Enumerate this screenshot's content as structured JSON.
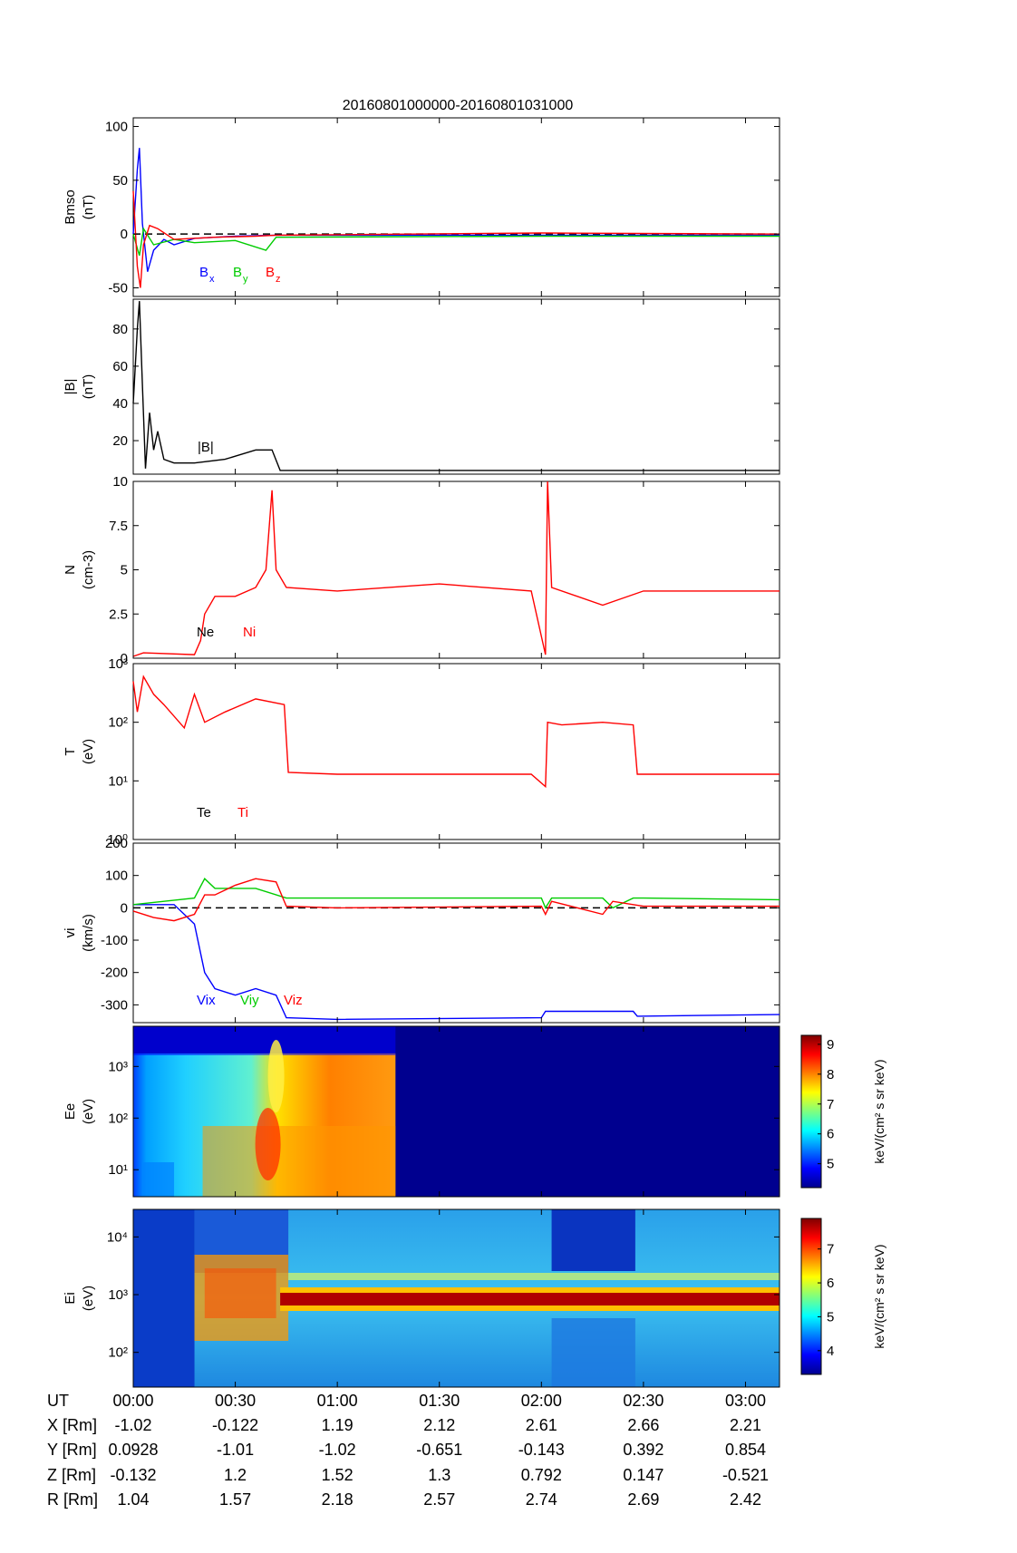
{
  "chart_data": {
    "title": "20160801000000-20160801031000",
    "time_axis": {
      "range_hours": [
        0,
        3.1667
      ],
      "ticks": [
        {
          "t": 0,
          "label": "00:00"
        },
        {
          "t": 0.5,
          "label": "00:30"
        },
        {
          "t": 1,
          "label": "01:00"
        },
        {
          "t": 1.5,
          "label": "01:30"
        },
        {
          "t": 2,
          "label": "02:00"
        },
        {
          "t": 2.5,
          "label": "02:30"
        },
        {
          "t": 3,
          "label": "03:00"
        }
      ]
    },
    "ephemeris": {
      "rows": [
        {
          "label": "UT",
          "values": []
        },
        {
          "label": "X [Rm]",
          "values": [
            "-1.02",
            "-0.122",
            "1.19",
            "2.12",
            "2.61",
            "2.66",
            "2.21"
          ]
        },
        {
          "label": "Y [Rm]",
          "values": [
            "0.0928",
            "-1.01",
            "-1.02",
            "-0.651",
            "-0.143",
            "0.392",
            "0.854"
          ]
        },
        {
          "label": "Z [Rm]",
          "values": [
            "-0.132",
            "1.2",
            "1.52",
            "1.3",
            "0.792",
            "0.147",
            "-0.521"
          ]
        },
        {
          "label": "R [Rm]",
          "values": [
            "1.04",
            "1.57",
            "2.18",
            "2.57",
            "2.74",
            "2.69",
            "2.42"
          ]
        }
      ]
    },
    "panels": [
      {
        "id": "bmso",
        "type": "line",
        "ylabel": "Bmso",
        "yunit": "(nT)",
        "ylim": [
          -58,
          108
        ],
        "yticks": [
          {
            "v": 100,
            "label": "100"
          },
          {
            "v": 50,
            "label": "50"
          },
          {
            "v": 0,
            "label": "0"
          },
          {
            "v": -50,
            "label": "-50"
          }
        ],
        "zero_line": true,
        "legend": [
          {
            "main": "B",
            "sub": "x",
            "color": "#0000ff"
          },
          {
            "main": "B",
            "sub": "y",
            "color": "#00cc00"
          },
          {
            "main": "B",
            "sub": "z",
            "color": "#ff0000"
          }
        ],
        "series": [
          {
            "color": "#0000ff",
            "points": [
              [
                0,
                0
              ],
              [
                0.02,
                60
              ],
              [
                0.03,
                80
              ],
              [
                0.045,
                10
              ],
              [
                0.07,
                -35
              ],
              [
                0.1,
                -15
              ],
              [
                0.15,
                -5
              ],
              [
                0.2,
                -10
              ],
              [
                0.3,
                -4
              ],
              [
                0.5,
                -2
              ],
              [
                0.7,
                -1
              ],
              [
                2,
                -1
              ],
              [
                3.1667,
                -1
              ]
            ]
          },
          {
            "color": "#00cc00",
            "points": [
              [
                0,
                0
              ],
              [
                0.03,
                -20
              ],
              [
                0.05,
                5
              ],
              [
                0.1,
                -10
              ],
              [
                0.2,
                -5
              ],
              [
                0.3,
                -8
              ],
              [
                0.5,
                -6
              ],
              [
                0.65,
                -15
              ],
              [
                0.7,
                -3
              ],
              [
                2,
                -2
              ],
              [
                3.1667,
                -2
              ]
            ]
          },
          {
            "color": "#ff0000",
            "points": [
              [
                0,
                40
              ],
              [
                0.02,
                -30
              ],
              [
                0.035,
                -50
              ],
              [
                0.05,
                -10
              ],
              [
                0.08,
                8
              ],
              [
                0.12,
                5
              ],
              [
                0.2,
                -5
              ],
              [
                0.4,
                -3
              ],
              [
                0.6,
                -2
              ],
              [
                0.7,
                -1
              ],
              [
                2,
                1
              ],
              [
                3.1667,
                0
              ]
            ]
          }
        ]
      },
      {
        "id": "btot",
        "type": "line",
        "ylabel": "|B|",
        "yunit": "(nT)",
        "ylim": [
          2,
          96
        ],
        "yticks": [
          {
            "v": 80,
            "label": "80"
          },
          {
            "v": 60,
            "label": "60"
          },
          {
            "v": 40,
            "label": "40"
          },
          {
            "v": 20,
            "label": "20"
          }
        ],
        "legend": [
          {
            "main": "|B|",
            "sub": "",
            "color": "#000000"
          }
        ],
        "series": [
          {
            "color": "#000000",
            "points": [
              [
                0,
                40
              ],
              [
                0.02,
                80
              ],
              [
                0.03,
                95
              ],
              [
                0.045,
                50
              ],
              [
                0.06,
                5
              ],
              [
                0.08,
                35
              ],
              [
                0.1,
                15
              ],
              [
                0.12,
                25
              ],
              [
                0.15,
                10
              ],
              [
                0.2,
                8
              ],
              [
                0.3,
                8
              ],
              [
                0.45,
                10
              ],
              [
                0.6,
                15
              ],
              [
                0.68,
                15
              ],
              [
                0.72,
                4
              ],
              [
                1,
                4
              ],
              [
                2,
                4
              ],
              [
                3.1667,
                4
              ]
            ]
          }
        ]
      },
      {
        "id": "dens",
        "type": "line",
        "ylabel": "N",
        "yunit": "(cm-3)",
        "ylim": [
          0,
          10
        ],
        "yticks": [
          {
            "v": 10,
            "label": "10"
          },
          {
            "v": 7.5,
            "label": "7.5"
          },
          {
            "v": 5,
            "label": "5"
          },
          {
            "v": 2.5,
            "label": "2.5"
          },
          {
            "v": 0,
            "label": "0"
          }
        ],
        "legend": [
          {
            "main": "Ne",
            "sub": "",
            "color": "#000000"
          },
          {
            "main": "Ni",
            "sub": "",
            "color": "#ff0000"
          }
        ],
        "series": [
          {
            "color": "#ff0000",
            "points": [
              [
                0,
                0.1
              ],
              [
                0.05,
                0.3
              ],
              [
                0.3,
                0.2
              ],
              [
                0.33,
                1
              ],
              [
                0.35,
                2.5
              ],
              [
                0.4,
                3.5
              ],
              [
                0.5,
                3.5
              ],
              [
                0.6,
                4
              ],
              [
                0.65,
                5
              ],
              [
                0.68,
                9.5
              ],
              [
                0.7,
                5
              ],
              [
                0.75,
                4
              ],
              [
                1,
                3.8
              ],
              [
                1.5,
                4.2
              ],
              [
                1.95,
                3.8
              ],
              [
                2.02,
                0.2
              ],
              [
                2.03,
                10
              ],
              [
                2.05,
                4
              ],
              [
                2.3,
                3
              ],
              [
                2.5,
                3.8
              ],
              [
                3.1667,
                3.8
              ]
            ]
          }
        ]
      },
      {
        "id": "temp",
        "type": "line",
        "ylabel": "T",
        "yunit": "(eV)",
        "log": true,
        "ylim": [
          1,
          1000
        ],
        "yticks": [
          {
            "v": 1000,
            "label": "10³"
          },
          {
            "v": 100,
            "label": "10²"
          },
          {
            "v": 10,
            "label": "10¹"
          },
          {
            "v": 1,
            "label": "10⁰"
          }
        ],
        "legend": [
          {
            "main": "Te",
            "sub": "",
            "color": "#000000"
          },
          {
            "main": "Ti",
            "sub": "",
            "color": "#ff0000"
          }
        ],
        "series": [
          {
            "color": "#ff0000",
            "points": [
              [
                0,
                500
              ],
              [
                0.02,
                150
              ],
              [
                0.05,
                600
              ],
              [
                0.1,
                300
              ],
              [
                0.15,
                200
              ],
              [
                0.25,
                80
              ],
              [
                0.3,
                300
              ],
              [
                0.35,
                100
              ],
              [
                0.45,
                150
              ],
              [
                0.6,
                250
              ],
              [
                0.74,
                200
              ],
              [
                0.76,
                14
              ],
              [
                1,
                13
              ],
              [
                1.5,
                13
              ],
              [
                1.95,
                13
              ],
              [
                2.02,
                8
              ],
              [
                2.03,
                100
              ],
              [
                2.1,
                90
              ],
              [
                2.3,
                100
              ],
              [
                2.45,
                90
              ],
              [
                2.47,
                13
              ],
              [
                3.1667,
                13
              ]
            ]
          }
        ]
      },
      {
        "id": "vel",
        "type": "line",
        "ylabel": "vi",
        "yunit": "(km/s)",
        "ylim": [
          -355,
          200
        ],
        "yticks": [
          {
            "v": 200,
            "label": "200"
          },
          {
            "v": 100,
            "label": "100"
          },
          {
            "v": 0,
            "label": "0"
          },
          {
            "v": -100,
            "label": "-100"
          },
          {
            "v": -200,
            "label": "-200"
          },
          {
            "v": -300,
            "label": "-300"
          }
        ],
        "zero_line": true,
        "legend": [
          {
            "main": "Vix",
            "sub": "",
            "color": "#0000ff"
          },
          {
            "main": "Viy",
            "sub": "",
            "color": "#00cc00"
          },
          {
            "main": "Viz",
            "sub": "",
            "color": "#ff0000"
          }
        ],
        "series": [
          {
            "color": "#0000ff",
            "points": [
              [
                0,
                10
              ],
              [
                0.2,
                10
              ],
              [
                0.3,
                -50
              ],
              [
                0.35,
                -200
              ],
              [
                0.4,
                -250
              ],
              [
                0.5,
                -270
              ],
              [
                0.6,
                -250
              ],
              [
                0.7,
                -270
              ],
              [
                0.75,
                -340
              ],
              [
                1,
                -345
              ],
              [
                2,
                -340
              ],
              [
                2.02,
                -320
              ],
              [
                2.1,
                -320
              ],
              [
                2.45,
                -320
              ],
              [
                2.47,
                -335
              ],
              [
                3.1667,
                -330
              ]
            ]
          },
          {
            "color": "#00cc00",
            "points": [
              [
                0,
                10
              ],
              [
                0.15,
                20
              ],
              [
                0.3,
                30
              ],
              [
                0.35,
                90
              ],
              [
                0.4,
                60
              ],
              [
                0.6,
                60
              ],
              [
                0.75,
                30
              ],
              [
                1,
                30
              ],
              [
                2,
                30
              ],
              [
                2.02,
                0
              ],
              [
                2.05,
                30
              ],
              [
                2.3,
                30
              ],
              [
                2.35,
                0
              ],
              [
                2.45,
                30
              ],
              [
                2.5,
                30
              ],
              [
                3.1667,
                25
              ]
            ]
          },
          {
            "color": "#ff0000",
            "points": [
              [
                0,
                -10
              ],
              [
                0.1,
                -30
              ],
              [
                0.2,
                -40
              ],
              [
                0.3,
                -20
              ],
              [
                0.35,
                40
              ],
              [
                0.4,
                40
              ],
              [
                0.5,
                70
              ],
              [
                0.6,
                90
              ],
              [
                0.7,
                80
              ],
              [
                0.75,
                5
              ],
              [
                1,
                0
              ],
              [
                2,
                5
              ],
              [
                2.02,
                -20
              ],
              [
                2.05,
                20
              ],
              [
                2.3,
                -20
              ],
              [
                2.35,
                20
              ],
              [
                2.45,
                10
              ],
              [
                2.5,
                5
              ],
              [
                3.1667,
                5
              ]
            ]
          }
        ]
      },
      {
        "id": "ee",
        "type": "heatmap",
        "ylabel": "Ee",
        "yunit": "(eV)",
        "log": true,
        "ylim": [
          3,
          6000
        ],
        "yticks": [
          {
            "v": 1000,
            "label": "10³"
          },
          {
            "v": 100,
            "label": "10²"
          },
          {
            "v": 10,
            "label": "10¹"
          }
        ],
        "colorbar": {
          "label": "keV/(cm² s sr keV)",
          "range": [
            4.2,
            9.3
          ],
          "ticks": [
            {
              "v": 9,
              "label": "9"
            },
            {
              "v": 8,
              "label": "8"
            },
            {
              "v": 7,
              "label": "7"
            },
            {
              "v": 6,
              "label": "6"
            },
            {
              "v": 5,
              "label": "5"
            }
          ]
        }
      },
      {
        "id": "ei",
        "type": "heatmap",
        "ylabel": "Ei",
        "yunit": "(eV)",
        "log": true,
        "ylim": [
          25,
          30000
        ],
        "yticks": [
          {
            "v": 10000,
            "label": "10⁴"
          },
          {
            "v": 1000,
            "label": "10³"
          },
          {
            "v": 100,
            "label": "10²"
          }
        ],
        "colorbar": {
          "label": "keV/(cm² s sr keV)",
          "range": [
            3.3,
            7.9
          ],
          "ticks": [
            {
              "v": 7,
              "label": "7"
            },
            {
              "v": 6,
              "label": "6"
            },
            {
              "v": 5,
              "label": "5"
            },
            {
              "v": 4,
              "label": "4"
            }
          ]
        }
      }
    ]
  }
}
